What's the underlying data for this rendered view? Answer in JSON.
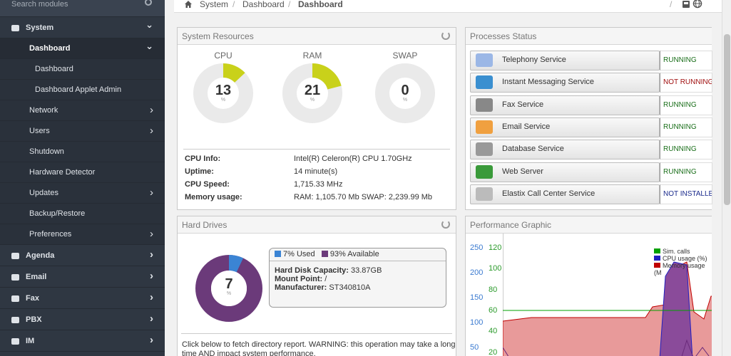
{
  "sidebar": {
    "search_placeholder": "Search modules",
    "items": [
      {
        "label": "System",
        "level": 0
      },
      {
        "label": "Dashboard",
        "level": 1
      },
      {
        "label": "Dashboard",
        "level": 2
      },
      {
        "label": "Dashboard Applet Admin",
        "level": 2
      },
      {
        "label": "Network",
        "level": 1
      },
      {
        "label": "Users",
        "level": 1
      },
      {
        "label": "Shutdown",
        "level": 1
      },
      {
        "label": "Hardware Detector",
        "level": 1
      },
      {
        "label": "Updates",
        "level": 1
      },
      {
        "label": "Backup/Restore",
        "level": 1
      },
      {
        "label": "Preferences",
        "level": 1
      },
      {
        "label": "Agenda",
        "level": 0
      },
      {
        "label": "Email",
        "level": 0
      },
      {
        "label": "Fax",
        "level": 0
      },
      {
        "label": "PBX",
        "level": 0
      },
      {
        "label": "IM",
        "level": 0
      }
    ]
  },
  "breadcrumb": {
    "root": "System",
    "sep": "/",
    "parent": "Dashboard",
    "current": "Dashboard"
  },
  "resources": {
    "title": "System Resources",
    "gauges": [
      {
        "label": "CPU",
        "value": "13",
        "unit": "%",
        "fraction": 0.13
      },
      {
        "label": "RAM",
        "value": "21",
        "unit": "%",
        "fraction": 0.21
      },
      {
        "label": "SWAP",
        "value": "0",
        "unit": "%",
        "fraction": 0
      }
    ],
    "info": [
      {
        "key": "CPU Info:",
        "value": "Intel(R) Celeron(R) CPU 1.70GHz"
      },
      {
        "key": "Uptime:",
        "value": "14 minute(s)"
      },
      {
        "key": "CPU Speed:",
        "value": "1,715.33 MHz"
      },
      {
        "key": "Memory usage:",
        "value": "RAM: 1,105.70 Mb SWAP: 2,239.99 Mb"
      }
    ],
    "colors": {
      "used": "#c9d11a",
      "free": "#eaeaea"
    }
  },
  "processes": {
    "title": "Processes Status",
    "items": [
      {
        "name": "Telephony Service",
        "status": "RUNNING",
        "color": "#1b6f1b",
        "icon": "phone-icon"
      },
      {
        "name": "Instant Messaging Service",
        "status": "NOT RUNNING",
        "color": "#a01010",
        "icon": "chat-icon"
      },
      {
        "name": "Fax Service",
        "status": "RUNNING",
        "color": "#1b6f1b",
        "icon": "fax-icon"
      },
      {
        "name": "Email Service",
        "status": "RUNNING",
        "color": "#1b6f1b",
        "icon": "email-icon"
      },
      {
        "name": "Database Service",
        "status": "RUNNING",
        "color": "#1b6f1b",
        "icon": "database-icon"
      },
      {
        "name": "Web Server",
        "status": "RUNNING",
        "color": "#1b6f1b",
        "icon": "globe-icon"
      },
      {
        "name": "Elastix Call Center Service",
        "status": "NOT INSTALLED",
        "color": "#1a2a8c",
        "icon": "headset-icon"
      }
    ]
  },
  "harddrives": {
    "title": "Hard Drives",
    "value": "7",
    "unit": "%",
    "used_fraction": 0.07,
    "legend_used": "7% Used",
    "legend_available": "93% Available",
    "used_color": "#3b84d4",
    "avail_color": "#6b3a7a",
    "capacity_label": "Hard Disk Capacity:",
    "capacity_value": "33.87GB",
    "mount_label": "Mount Point:",
    "mount_value": "/",
    "manufacturer_label": "Manufacturer:",
    "manufacturer_value": "ST340810A",
    "note": "Click below to fetch directory report. WARNING: this operation may take a long time AND impact system performance."
  },
  "performance": {
    "title": "Performance Graphic",
    "axis_left_ticks": [
      "250",
      "200",
      "150",
      "100",
      "50"
    ],
    "axis_mid_ticks": [
      "120",
      "100",
      "80",
      "60",
      "40",
      "20"
    ],
    "legend": [
      {
        "label": "Sim. calls",
        "color": "#00a000"
      },
      {
        "label": "CPU usage (%)",
        "color": "#2020c0"
      },
      {
        "label": "Memory usage (M",
        "color": "#c00000"
      }
    ]
  }
}
